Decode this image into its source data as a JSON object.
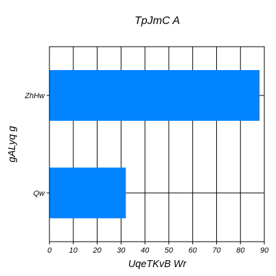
{
  "chart_data": {
    "type": "bar",
    "orientation": "horizontal",
    "title": "TpJmC A",
    "xlabel": "UqeTKvB Wr",
    "ylabel": "gALyq  g",
    "categories": [
      "Qw",
      "ZhHw"
    ],
    "values": [
      32,
      88
    ],
    "xlim": [
      0,
      90
    ],
    "xticks": [
      0,
      10,
      20,
      30,
      40,
      50,
      60,
      70,
      80,
      90
    ],
    "grid": true,
    "bar_color": "#0084ff"
  }
}
